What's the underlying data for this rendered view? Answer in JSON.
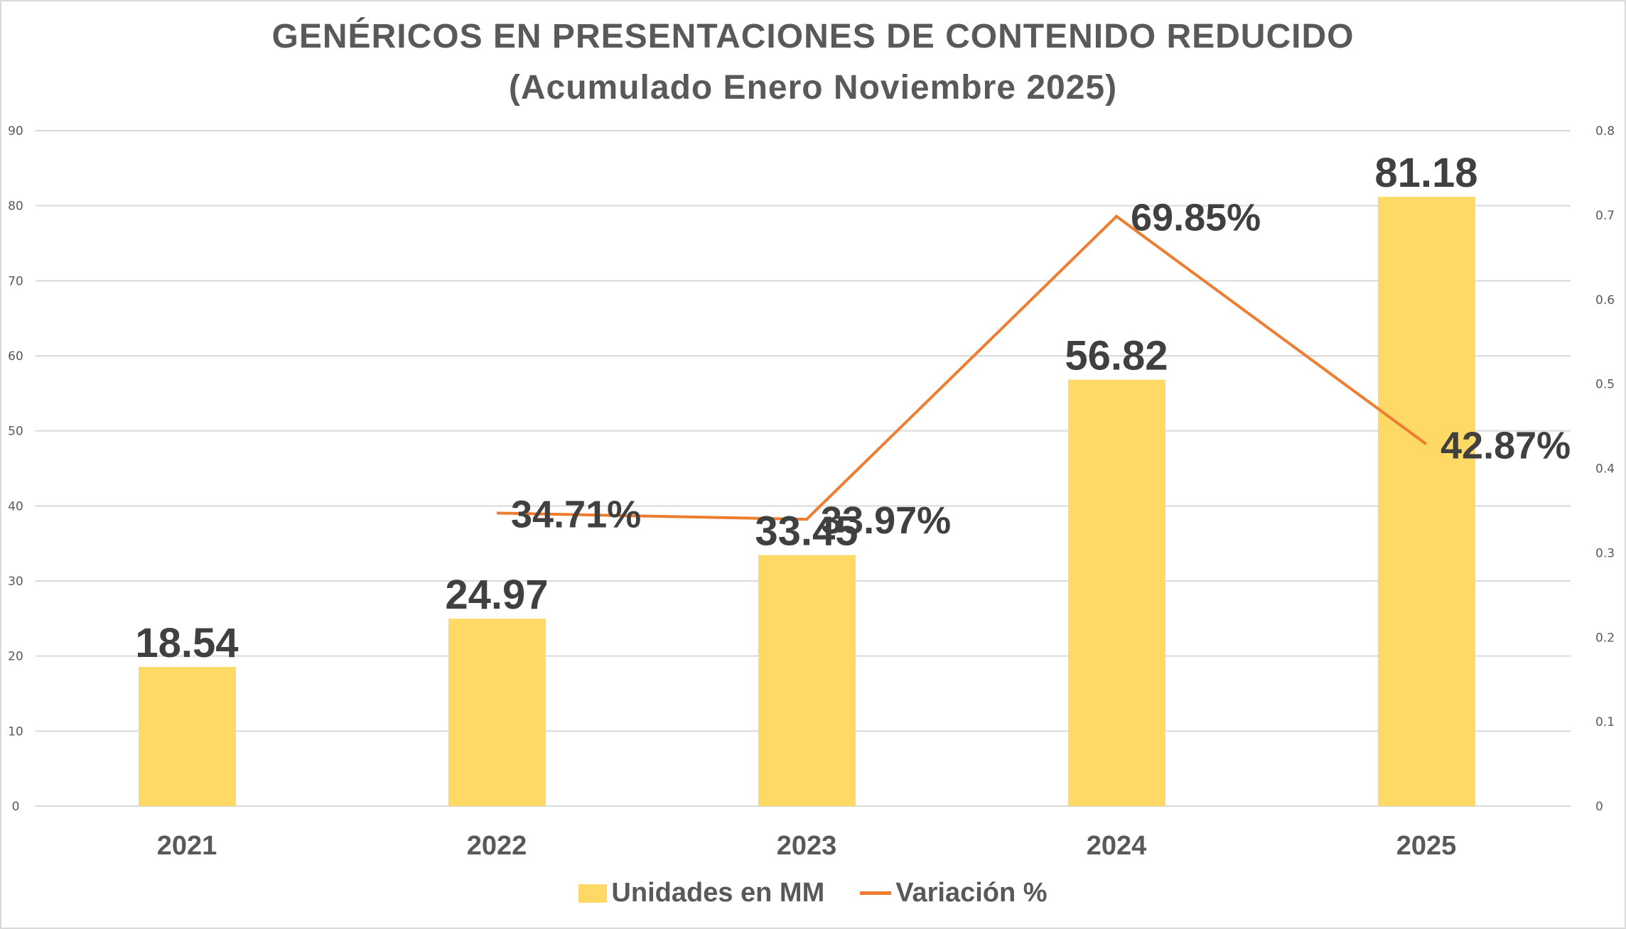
{
  "chart_data": {
    "type": "bar+line",
    "title": "GENÉRICOS EN PRESENTACIONES DE CONTENIDO REDUCIDO",
    "subtitle": "(Acumulado Enero Noviembre 2025)",
    "categories": [
      "2021",
      "2022",
      "2023",
      "2024",
      "2025"
    ],
    "series": [
      {
        "name": "Unidades en MM",
        "type": "bar",
        "axis": "left",
        "color": "#FFD966",
        "values": [
          18.54,
          24.97,
          33.45,
          56.82,
          81.18
        ],
        "labels": [
          "18.54",
          "24.97",
          "33.45",
          "56.82",
          "81.18"
        ]
      },
      {
        "name": "Variación %",
        "type": "line",
        "axis": "right",
        "color": "#ED7D31",
        "values": [
          null,
          0.3471,
          0.3397,
          0.6985,
          0.4287
        ],
        "labels": [
          "",
          "34.71%",
          "33.97%",
          "69.85%",
          "42.87%"
        ]
      }
    ],
    "y_left": {
      "min": 0,
      "max": 90,
      "ticks": [
        "0",
        "10",
        "20",
        "30",
        "40",
        "50",
        "60",
        "70",
        "80",
        "90"
      ]
    },
    "y_right": {
      "min": 0,
      "max": 0.8,
      "ticks": [
        "0",
        "0.1",
        "0.2",
        "0.3",
        "0.4",
        "0.5",
        "0.6",
        "0.7",
        "0.8"
      ]
    },
    "grid": true,
    "legend": "bottom"
  }
}
